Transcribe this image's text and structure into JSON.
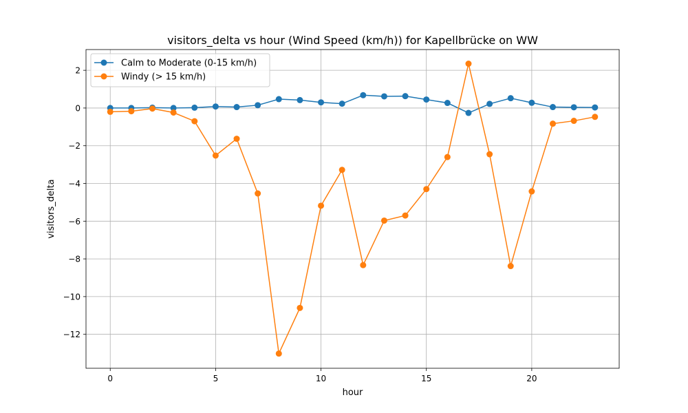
{
  "chart_data": {
    "type": "line",
    "title": "visitors_delta vs hour (Wind Speed (km/h)) for Kapellbrücke on WW",
    "xlabel": "hour",
    "ylabel": "visitors_delta",
    "xlim": [
      -1.15,
      24.15
    ],
    "ylim": [
      -13.8,
      3.1
    ],
    "xticks": [
      0,
      5,
      10,
      15,
      20
    ],
    "yticks": [
      -12,
      -10,
      -8,
      -6,
      -4,
      -2,
      0,
      2
    ],
    "grid": true,
    "legend_position": "top-left",
    "x": [
      0,
      1,
      2,
      3,
      4,
      5,
      6,
      7,
      8,
      9,
      10,
      11,
      12,
      13,
      14,
      15,
      16,
      17,
      18,
      19,
      20,
      21,
      22,
      23
    ],
    "series": [
      {
        "name": "Calm to Moderate (0-15 km/h)",
        "color": "#1f77b4",
        "values": [
          0.0,
          0.0,
          0.02,
          0.0,
          0.02,
          0.08,
          0.05,
          0.15,
          0.47,
          0.42,
          0.3,
          0.23,
          0.68,
          0.62,
          0.63,
          0.45,
          0.27,
          -0.26,
          0.22,
          0.52,
          0.28,
          0.05,
          0.04,
          0.03
        ]
      },
      {
        "name": "Windy (> 15 km/h)",
        "color": "#ff7f0e",
        "values": [
          -0.2,
          -0.17,
          -0.03,
          -0.24,
          -0.7,
          -2.52,
          -1.63,
          -4.53,
          -13.02,
          -10.6,
          -5.18,
          -3.28,
          -8.33,
          -5.97,
          -5.7,
          -4.3,
          -2.6,
          2.35,
          -2.45,
          -8.38,
          -4.42,
          -0.83,
          -0.68,
          -0.47
        ]
      }
    ]
  }
}
